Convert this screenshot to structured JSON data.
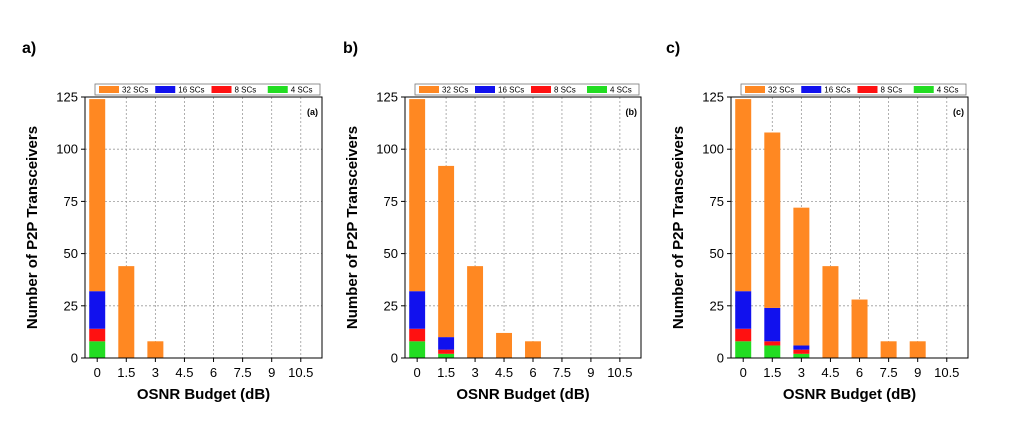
{
  "chart_data": [
    {
      "type": "bar",
      "stacked": true,
      "panel_label": "a)",
      "inner_label": "(a)",
      "xlabel": "OSNR Budget (dB)",
      "ylabel": "Number of P2P Transceivers",
      "categories": [
        "0",
        "1.5",
        "3",
        "4.5",
        "6",
        "7.5",
        "9",
        "10.5"
      ],
      "ylim": [
        0,
        125
      ],
      "yticks": [
        "0",
        "25",
        "50",
        "75",
        "100",
        "125"
      ],
      "grid": true,
      "legend_position": "top",
      "series": [
        {
          "name": "4 SCs",
          "color": "#22dd22",
          "values": [
            8,
            0,
            0,
            0,
            0,
            0,
            0,
            0
          ]
        },
        {
          "name": "8 SCs",
          "color": "#ff1111",
          "values": [
            6,
            0,
            0,
            0,
            0,
            0,
            0,
            0
          ]
        },
        {
          "name": "16 SCs",
          "color": "#1111ee",
          "values": [
            18,
            0,
            0,
            0,
            0,
            0,
            0,
            0
          ]
        },
        {
          "name": "32 SCs",
          "color": "#ff8822",
          "values": [
            92,
            44,
            8,
            0,
            0,
            0,
            0,
            0
          ]
        }
      ]
    },
    {
      "type": "bar",
      "stacked": true,
      "panel_label": "b)",
      "inner_label": "(b)",
      "xlabel": "OSNR Budget (dB)",
      "ylabel": "Number of P2P Transceivers",
      "categories": [
        "0",
        "1.5",
        "3",
        "4.5",
        "6",
        "7.5",
        "9",
        "10.5"
      ],
      "ylim": [
        0,
        125
      ],
      "yticks": [
        "0",
        "25",
        "50",
        "75",
        "100",
        "125"
      ],
      "grid": true,
      "legend_position": "top",
      "series": [
        {
          "name": "4 SCs",
          "color": "#22dd22",
          "values": [
            8,
            2,
            0,
            0,
            0,
            0,
            0,
            0
          ]
        },
        {
          "name": "8 SCs",
          "color": "#ff1111",
          "values": [
            6,
            2,
            0,
            0,
            0,
            0,
            0,
            0
          ]
        },
        {
          "name": "16 SCs",
          "color": "#1111ee",
          "values": [
            18,
            6,
            0,
            0,
            0,
            0,
            0,
            0
          ]
        },
        {
          "name": "32 SCs",
          "color": "#ff8822",
          "values": [
            92,
            82,
            44,
            12,
            8,
            0,
            0,
            0
          ]
        }
      ]
    },
    {
      "type": "bar",
      "stacked": true,
      "panel_label": "c)",
      "inner_label": "(c)",
      "xlabel": "OSNR Budget (dB)",
      "ylabel": "Number of P2P Transceivers",
      "categories": [
        "0",
        "1.5",
        "3",
        "4.5",
        "6",
        "7.5",
        "9",
        "10.5"
      ],
      "ylim": [
        0,
        125
      ],
      "yticks": [
        "0",
        "25",
        "50",
        "75",
        "100",
        "125"
      ],
      "grid": true,
      "legend_position": "top",
      "series": [
        {
          "name": "4 SCs",
          "color": "#22dd22",
          "values": [
            8,
            6,
            2,
            0,
            0,
            0,
            0,
            0
          ]
        },
        {
          "name": "8 SCs",
          "color": "#ff1111",
          "values": [
            6,
            2,
            2,
            0,
            0,
            0,
            0,
            0
          ]
        },
        {
          "name": "16 SCs",
          "color": "#1111ee",
          "values": [
            18,
            16,
            2,
            0,
            0,
            0,
            0,
            0
          ]
        },
        {
          "name": "32 SCs",
          "color": "#ff8822",
          "values": [
            92,
            84,
            66,
            44,
            28,
            8,
            8,
            0
          ]
        }
      ]
    }
  ]
}
